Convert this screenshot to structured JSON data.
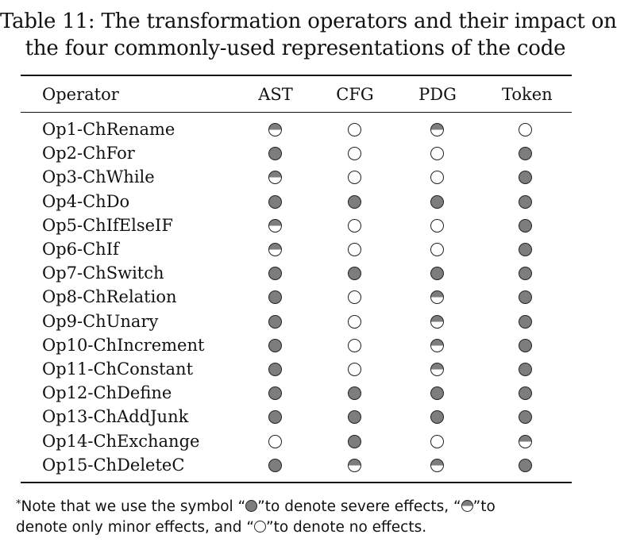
{
  "caption": {
    "line1": "Table 11: The transformation operators and their impact on",
    "line2": "the four commonly-used representations of the code"
  },
  "table": {
    "headers": [
      "Operator",
      "AST",
      "CFG",
      "PDG",
      "Token"
    ],
    "rows": [
      {
        "op": "Op1-ChRename",
        "ast": "minor",
        "cfg": "none",
        "pdg": "minor",
        "token": "none"
      },
      {
        "op": "Op2-ChFor",
        "ast": "severe",
        "cfg": "none",
        "pdg": "none",
        "token": "severe"
      },
      {
        "op": "Op3-ChWhile",
        "ast": "minor",
        "cfg": "none",
        "pdg": "none",
        "token": "severe"
      },
      {
        "op": "Op4-ChDo",
        "ast": "severe",
        "cfg": "severe",
        "pdg": "severe",
        "token": "severe"
      },
      {
        "op": "Op5-ChIfElseIF",
        "ast": "minor",
        "cfg": "none",
        "pdg": "none",
        "token": "severe"
      },
      {
        "op": "Op6-ChIf",
        "ast": "minor",
        "cfg": "none",
        "pdg": "none",
        "token": "severe"
      },
      {
        "op": "Op7-ChSwitch",
        "ast": "severe",
        "cfg": "severe",
        "pdg": "severe",
        "token": "severe"
      },
      {
        "op": "Op8-ChRelation",
        "ast": "severe",
        "cfg": "none",
        "pdg": "minor",
        "token": "severe"
      },
      {
        "op": "Op9-ChUnary",
        "ast": "severe",
        "cfg": "none",
        "pdg": "minor",
        "token": "severe"
      },
      {
        "op": "Op10-ChIncrement",
        "ast": "severe",
        "cfg": "none",
        "pdg": "minor",
        "token": "severe"
      },
      {
        "op": "Op11-ChConstant",
        "ast": "severe",
        "cfg": "none",
        "pdg": "minor",
        "token": "severe"
      },
      {
        "op": "Op12-ChDefine",
        "ast": "severe",
        "cfg": "severe",
        "pdg": "severe",
        "token": "severe"
      },
      {
        "op": "Op13-ChAddJunk",
        "ast": "severe",
        "cfg": "severe",
        "pdg": "severe",
        "token": "severe"
      },
      {
        "op": "Op14-ChExchange",
        "ast": "none",
        "cfg": "severe",
        "pdg": "none",
        "token": "minor"
      },
      {
        "op": "Op15-ChDeleteC",
        "ast": "severe",
        "cfg": "minor",
        "pdg": "minor",
        "token": "severe"
      }
    ]
  },
  "note": {
    "star": "*",
    "part1": "Note that we use the symbol “",
    "part2": "”to denote severe effects, “",
    "part3": "”to",
    "part4": "denote only minor effects, and “",
    "part5": "”to denote no effects."
  },
  "colors": {
    "severe_fill": "#7d7d7d",
    "none_fill": "#ffffff",
    "outline": "#222222"
  }
}
